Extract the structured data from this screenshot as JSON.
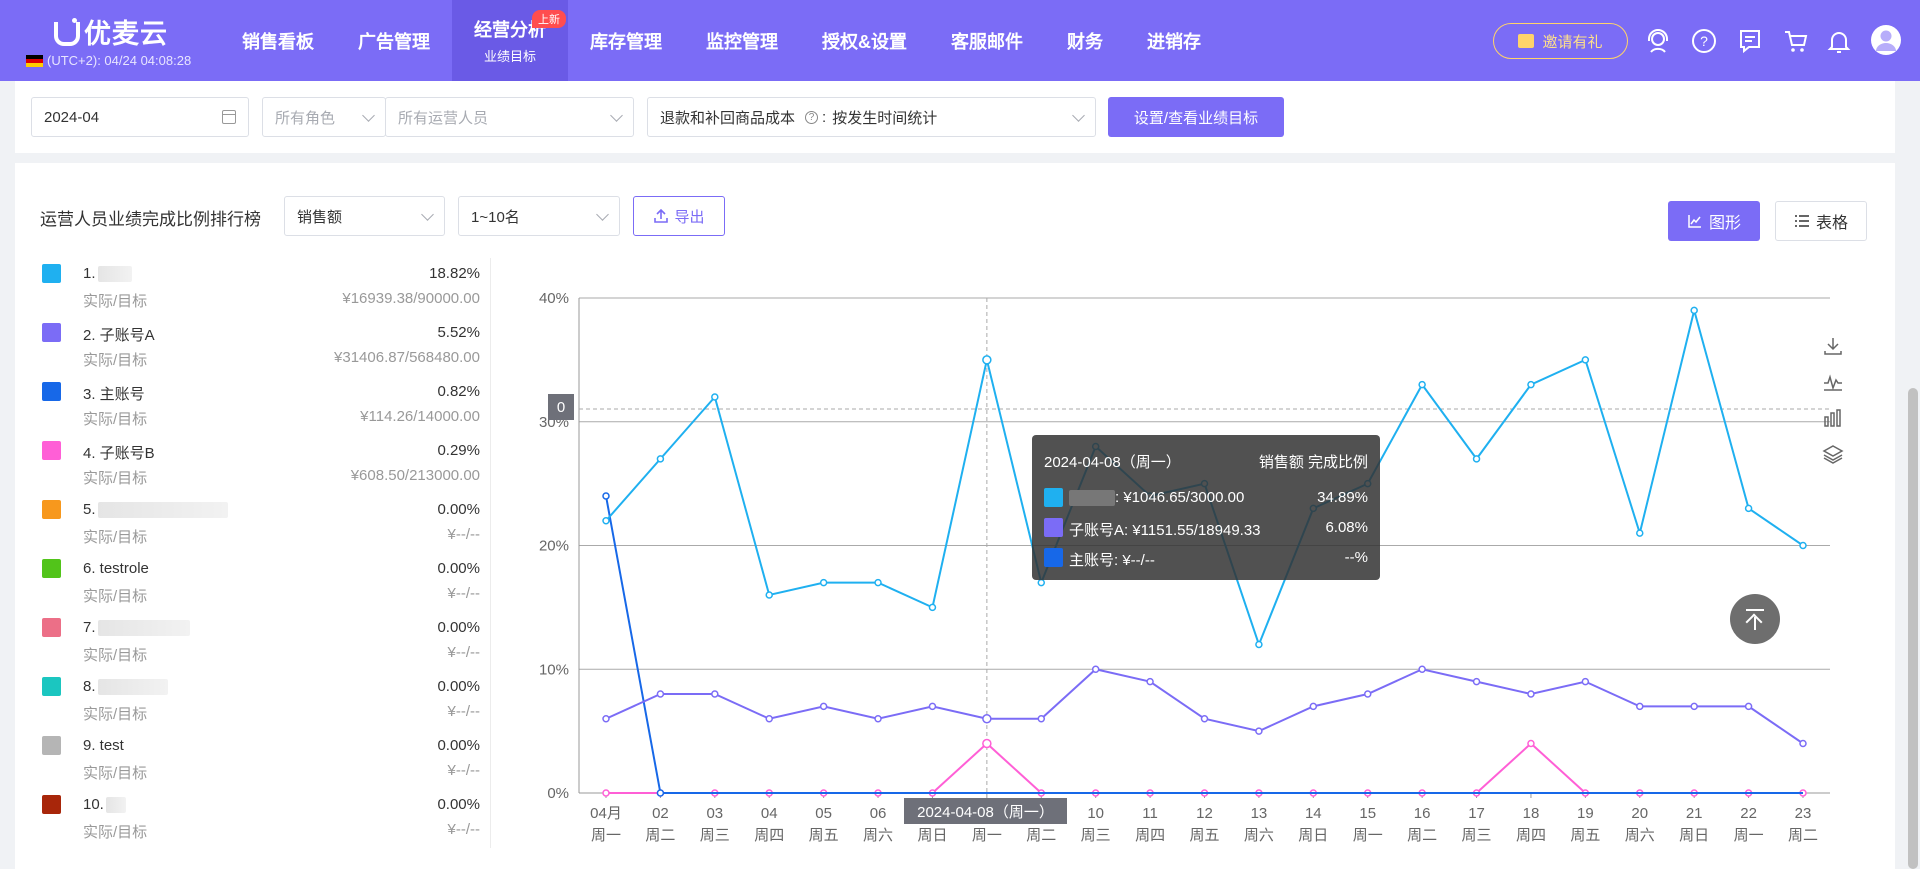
{
  "app": {
    "logo_text": "优麦云",
    "timezone": "(UTC+2): 04/24 04:08:28",
    "nav": [
      {
        "label": "销售看板"
      },
      {
        "label": "广告管理"
      },
      {
        "label": "经营分析",
        "sub": "业绩目标",
        "badge": "上新",
        "active": true
      },
      {
        "label": "库存管理"
      },
      {
        "label": "监控管理"
      },
      {
        "label": "授权&设置"
      },
      {
        "label": "客服邮件"
      },
      {
        "label": "财务"
      },
      {
        "label": "进销存"
      }
    ],
    "invite_label": "邀请有礼"
  },
  "filters": {
    "month": "2024-04",
    "role_placeholder": "所有角色",
    "operator_placeholder": "所有运营人员",
    "cost_label": "退款和补回商品成本",
    "cost_value": "按发生时间统计",
    "target_button": "设置/查看业绩目标"
  },
  "panel": {
    "title": "运营人员业绩完成比例排行榜",
    "metric_select": "销售额",
    "range_select": "1~10名",
    "export_label": "导出",
    "graph_label": "图形",
    "table_label": "表格"
  },
  "ranking": [
    {
      "name": "1.",
      "pct": "18.82%",
      "sub": "实际/目标",
      "ratio": "¥16939.38/90000.00",
      "color": "#1fb0f0"
    },
    {
      "name": "2. 子账号A",
      "pct": "5.52%",
      "sub": "实际/目标",
      "ratio": "¥31406.87/568480.00",
      "color": "#7b6cf6"
    },
    {
      "name": "3. 主账号",
      "pct": "0.82%",
      "sub": "实际/目标",
      "ratio": "¥114.26/14000.00",
      "color": "#1768e8"
    },
    {
      "name": "4. 子账号B",
      "pct": "0.29%",
      "sub": "实际/目标",
      "ratio": "¥608.50/213000.00",
      "color": "#ff5fd6"
    },
    {
      "name": "5.",
      "pct": "0.00%",
      "sub": "实际/目标",
      "ratio": "¥--/--",
      "color": "#f7981d"
    },
    {
      "name": "6. testrole",
      "pct": "0.00%",
      "sub": "实际/目标",
      "ratio": "¥--/--",
      "color": "#52c41a"
    },
    {
      "name": "7.",
      "pct": "0.00%",
      "sub": "实际/目标",
      "ratio": "¥--/--",
      "color": "#ec6f87"
    },
    {
      "name": "8.",
      "pct": "0.00%",
      "sub": "实际/目标",
      "ratio": "¥--/--",
      "color": "#1bc6c0"
    },
    {
      "name": "9. test",
      "pct": "0.00%",
      "sub": "实际/目标",
      "ratio": "¥--/--",
      "color": "#b5b5b5"
    },
    {
      "name": "10.",
      "pct": "0.00%",
      "sub": "实际/目标",
      "ratio": "¥--/--",
      "color": "#a8260a"
    }
  ],
  "tooltip": {
    "date": "2024-04-08（周一）",
    "header_right": "销售额 完成比例",
    "rows": [
      {
        "label": ": ¥1046.65/3000.00",
        "pct": "34.89%",
        "color": "#1fb0f0"
      },
      {
        "label": "子账号A: ¥1151.55/18949.33",
        "pct": "6.08%",
        "color": "#7b6cf6"
      },
      {
        "label": "主账号: ¥--/--",
        "pct": "--%",
        "color": "#1768e8"
      }
    ]
  },
  "axis_pointer": {
    "x_label": "2024-04-08（周一）",
    "y_label": "0"
  },
  "chart_data": {
    "type": "line",
    "title": "",
    "ylim": [
      0,
      40
    ],
    "y_ticks": [
      "0%",
      "10%",
      "20%",
      "30%",
      "40%"
    ],
    "x": [
      "04月",
      "02",
      "03",
      "04",
      "05",
      "06",
      "07",
      "08",
      "09",
      "10",
      "11",
      "12",
      "13",
      "14",
      "15",
      "16",
      "17",
      "18",
      "19",
      "20",
      "21",
      "22",
      "23"
    ],
    "x_sub": [
      "周一",
      "周二",
      "周三",
      "周四",
      "周五",
      "周六",
      "周日",
      "周一",
      "周二",
      "周三",
      "周四",
      "周五",
      "周六",
      "周日",
      "周一",
      "周二",
      "周三",
      "周四",
      "周五",
      "周六",
      "周日",
      "周一",
      "周二"
    ],
    "grid": true,
    "series": [
      {
        "color": "#1fb0f0",
        "values": [
          22,
          27,
          32,
          16,
          17,
          17,
          15,
          35,
          17,
          28,
          24,
          25,
          12,
          23,
          25,
          33,
          27,
          33,
          35,
          21,
          39,
          23,
          20
        ]
      },
      {
        "color": "#7b6cf6",
        "values": [
          6,
          8,
          8,
          6,
          7,
          6,
          7,
          6,
          6,
          10,
          9,
          6,
          5,
          7,
          8,
          10,
          9,
          8,
          9,
          7,
          7,
          7,
          4
        ]
      },
      {
        "color": "#1768e8",
        "values": [
          24,
          0,
          0,
          0,
          0,
          0,
          0,
          0,
          0,
          0,
          0,
          0,
          0,
          0,
          0,
          0,
          0,
          0,
          0,
          0,
          0,
          0,
          0
        ]
      },
      {
        "color": "#ff5fd6",
        "values": [
          0,
          0,
          0,
          0,
          0,
          0,
          0,
          4,
          0,
          0,
          0,
          0,
          0,
          0,
          0,
          0,
          0,
          4,
          0,
          0,
          0,
          0,
          0
        ]
      }
    ]
  }
}
